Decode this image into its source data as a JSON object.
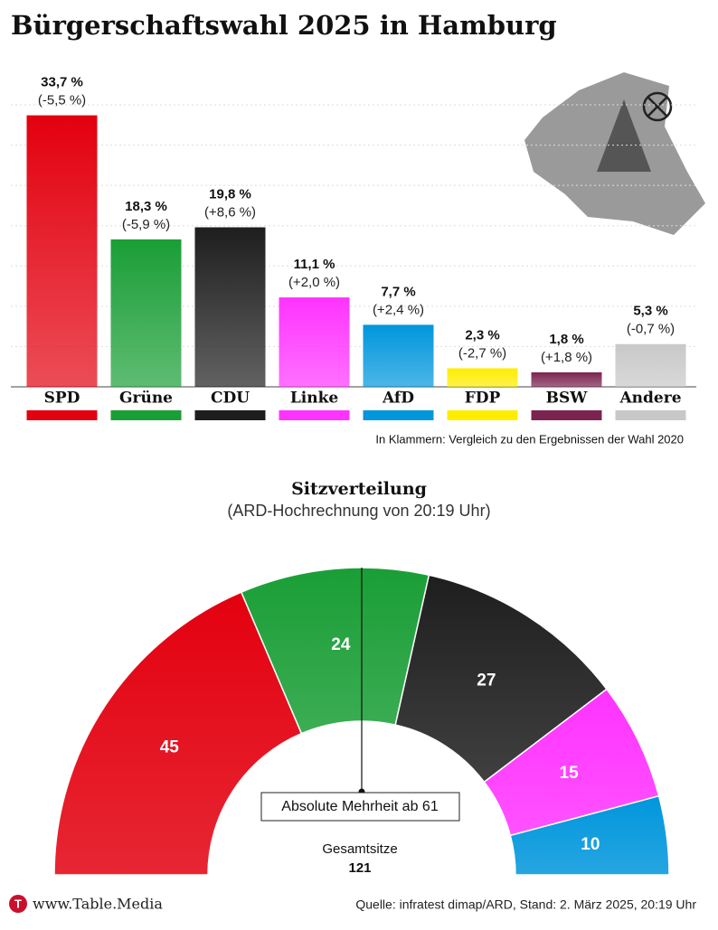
{
  "title": "Bürgerschaftswahl 2025 in Hamburg",
  "chart_data": [
    {
      "type": "bar",
      "categories": [
        "SPD",
        "Grüne",
        "CDU",
        "Linke",
        "AfD",
        "FDP",
        "BSW",
        "Andere"
      ],
      "values": [
        33.7,
        18.3,
        19.8,
        11.1,
        7.7,
        2.3,
        1.8,
        5.3
      ],
      "value_labels": [
        "33,7 %",
        "18,3 %",
        "19,8 %",
        "11,1 %",
        "7,7 %",
        "2,3 %",
        "1,8 %",
        "5,3 %"
      ],
      "change_labels": [
        "(-5,5 %)",
        "(-5,9 %)",
        "(+8,6 %)",
        "(+2,0 %)",
        "(+2,4 %)",
        "(-2,7 %)",
        "(+1,8 %)",
        "(-0,7 %)"
      ],
      "colors": [
        "#e3000f",
        "#1a9e36",
        "#1e1e1e",
        "#ff33ff",
        "#0096dc",
        "#ffed00",
        "#7b2450",
        "#c8c8c8"
      ],
      "ylim": [
        0,
        35
      ],
      "yticks": [
        0,
        5,
        10,
        15,
        20,
        25,
        30,
        35
      ],
      "grid": true,
      "annotation": "In Klammern: Vergleich zu den Ergebnissen der Wahl 2020"
    },
    {
      "type": "parliament",
      "title": "Sitzverteilung",
      "subtitle": "(ARD-Hochrechnung von 20:19 Uhr)",
      "categories": [
        "SPD",
        "Grüne",
        "CDU",
        "Linke",
        "AfD"
      ],
      "values": [
        45,
        24,
        27,
        15,
        10
      ],
      "colors": [
        "#e3000f",
        "#1a9e36",
        "#1e1e1e",
        "#ff33ff",
        "#0096dc"
      ],
      "annotation": "Absolute Mehrheit ab 61",
      "total_label": "Gesamtsitze",
      "total": 121
    }
  ],
  "footer": {
    "brand": "www.Table.Media",
    "source": "Quelle: infratest dimap/ARD, Stand: 2. März 2025, 20:19 Uhr"
  }
}
